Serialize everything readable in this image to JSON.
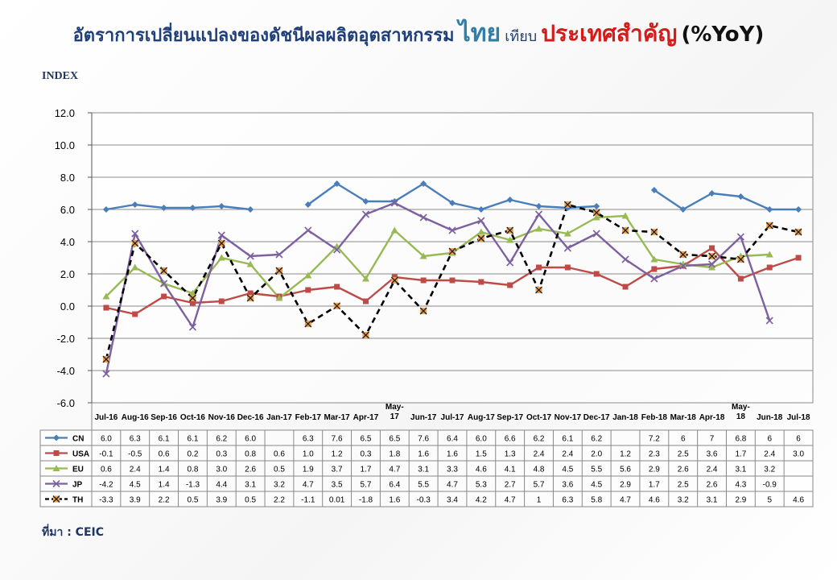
{
  "title": {
    "part1": "อัตราการเปลี่ยนแปลงของดัชนีผลผลิตอุตสาหกรรม",
    "part2": "ไทย",
    "part3": "เทียบ",
    "part4": "ประเทศสำคัญ",
    "part5": "(%YoY)"
  },
  "index_label": "INDEX",
  "source": "ที่มา : CEIC",
  "chart_data": {
    "type": "line",
    "ylim": [
      -6.0,
      12.0
    ],
    "yticks": [
      "12.0",
      "10.0",
      "8.0",
      "6.0",
      "4.0",
      "2.0",
      "0.0",
      "-2.0",
      "-4.0",
      "-6.0"
    ],
    "ytick_values": [
      12,
      10,
      8,
      6,
      4,
      2,
      0,
      -2,
      -4,
      -6
    ],
    "grid": "horizontal",
    "legend": "data-table-below",
    "categories": [
      "Jul-16",
      "Aug-16",
      "Sep-16",
      "Oct-16",
      "Nov-16",
      "Dec-16",
      "Jan-17",
      "Feb-17",
      "Mar-17",
      "Apr-17",
      "May-17",
      "Jun-17",
      "Jul-17",
      "Aug-17",
      "Sep-17",
      "Oct-17",
      "Nov-17",
      "Dec-17",
      "Jan-18",
      "Feb-18",
      "Mar-18",
      "Apr-18",
      "May-18",
      "Jun-18",
      "Jul-18"
    ],
    "series": [
      {
        "name": "CN",
        "color": "#4a7ebb",
        "marker": "diamond",
        "dash": false,
        "values": [
          6.0,
          6.3,
          6.1,
          6.1,
          6.2,
          6.0,
          null,
          6.3,
          7.6,
          6.5,
          6.5,
          7.6,
          6.4,
          6.0,
          6.6,
          6.2,
          6.1,
          6.2,
          null,
          7.2,
          6,
          7,
          6.8,
          6,
          6
        ],
        "labels": [
          "6.0",
          "6.3",
          "6.1",
          "6.1",
          "6.2",
          "6.0",
          "",
          "6.3",
          "7.6",
          "6.5",
          "6.5",
          "7.6",
          "6.4",
          "6.0",
          "6.6",
          "6.2",
          "6.1",
          "6.2",
          "",
          "7.2",
          "6",
          "7",
          "6.8",
          "6",
          "6"
        ]
      },
      {
        "name": "USA",
        "color": "#be4b48",
        "marker": "square",
        "dash": false,
        "values": [
          -0.1,
          -0.5,
          0.6,
          0.2,
          0.3,
          0.8,
          0.6,
          1.0,
          1.2,
          0.3,
          1.8,
          1.6,
          1.6,
          1.5,
          1.3,
          2.4,
          2.4,
          2.0,
          1.2,
          2.3,
          2.5,
          3.6,
          1.7,
          2.4,
          3.0
        ],
        "labels": [
          "-0.1",
          "-0.5",
          "0.6",
          "0.2",
          "0.3",
          "0.8",
          "0.6",
          "1.0",
          "1.2",
          "0.3",
          "1.8",
          "1.6",
          "1.6",
          "1.5",
          "1.3",
          "2.4",
          "2.4",
          "2.0",
          "1.2",
          "2.3",
          "2.5",
          "3.6",
          "1.7",
          "2.4",
          "3.0"
        ]
      },
      {
        "name": "EU",
        "color": "#98b954",
        "marker": "triangle",
        "dash": false,
        "values": [
          0.6,
          2.4,
          1.4,
          0.8,
          3.0,
          2.6,
          0.5,
          1.9,
          3.7,
          1.7,
          4.7,
          3.1,
          3.3,
          4.6,
          4.1,
          4.8,
          4.5,
          5.5,
          5.6,
          2.9,
          2.6,
          2.4,
          3.1,
          3.2,
          null
        ],
        "labels": [
          "0.6",
          "2.4",
          "1.4",
          "0.8",
          "3.0",
          "2.6",
          "0.5",
          "1.9",
          "3.7",
          "1.7",
          "4.7",
          "3.1",
          "3.3",
          "4.6",
          "4.1",
          "4.8",
          "4.5",
          "5.5",
          "5.6",
          "2.9",
          "2.6",
          "2.4",
          "3.1",
          "3.2",
          ""
        ]
      },
      {
        "name": "JP",
        "color": "#7d60a0",
        "marker": "x",
        "dash": false,
        "values": [
          -4.2,
          4.5,
          1.4,
          -1.3,
          4.4,
          3.1,
          3.2,
          4.7,
          3.5,
          5.7,
          6.4,
          5.5,
          4.7,
          5.3,
          2.7,
          5.7,
          3.6,
          4.5,
          2.9,
          1.7,
          2.5,
          2.6,
          4.3,
          -0.9,
          null
        ],
        "labels": [
          "-4.2",
          "4.5",
          "1.4",
          "-1.3",
          "4.4",
          "3.1",
          "3.2",
          "4.7",
          "3.5",
          "5.7",
          "6.4",
          "5.5",
          "4.7",
          "5.3",
          "2.7",
          "5.7",
          "3.6",
          "4.5",
          "2.9",
          "1.7",
          "2.5",
          "2.6",
          "4.3",
          "-0.9",
          ""
        ]
      },
      {
        "name": "TH",
        "color": "#000000",
        "marker": "star",
        "dash": true,
        "values": [
          -3.3,
          3.9,
          2.2,
          0.5,
          3.9,
          0.5,
          2.2,
          -1.1,
          0.01,
          -1.8,
          1.6,
          -0.3,
          3.4,
          4.2,
          4.7,
          1,
          6.3,
          5.8,
          4.7,
          4.6,
          3.2,
          3.1,
          2.9,
          5,
          4.6
        ],
        "labels": [
          "-3.3",
          "3.9",
          "2.2",
          "0.5",
          "3.9",
          "0.5",
          "2.2",
          "-1.1",
          "0.01",
          "-1.8",
          "1.6",
          "-0.3",
          "3.4",
          "4.2",
          "4.7",
          "1",
          "6.3",
          "5.8",
          "4.7",
          "4.6",
          "3.2",
          "3.1",
          "2.9",
          "5",
          "4.6"
        ]
      }
    ]
  }
}
